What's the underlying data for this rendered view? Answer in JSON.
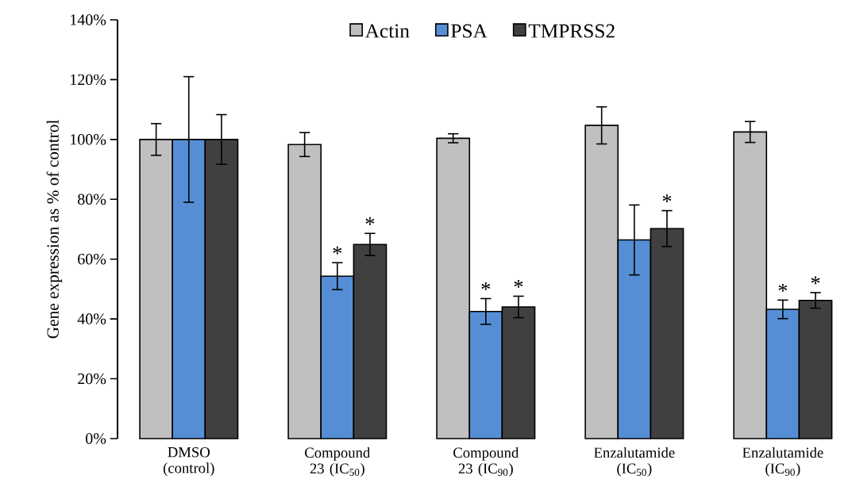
{
  "chart_data": {
    "type": "bar",
    "ylabel": "Gene expression as % of control",
    "categories": [
      "DMSO (control)",
      "Compound 23 (IC$_{50}$)",
      "Compound 23 (IC$_{90}$)",
      "Enzalutamide (IC$_{50}$)",
      "Enzalutamide (IC$_{90}$)"
    ],
    "series": [
      {
        "name": "Actin",
        "color": "#c0c0c0",
        "values": [
          100,
          98.3,
          100.4,
          104.7,
          102.5
        ],
        "errors": [
          5.3,
          4,
          1.5,
          6.2,
          3.5
        ],
        "value_labels": [
          null,
          null,
          null,
          null,
          null
        ]
      },
      {
        "name": "PSA",
        "color": "#558ed5",
        "values": [
          100,
          54.3,
          42.5,
          66.4,
          43.2
        ],
        "errors": [
          21,
          4.5,
          4.3,
          11.7,
          3.1
        ],
        "value_labels": [
          null,
          "*",
          "*",
          null,
          "*"
        ]
      },
      {
        "name": "TMPRSS2",
        "color": "#404040",
        "values": [
          100,
          64.9,
          44,
          70.2,
          46.2
        ],
        "errors": [
          8.3,
          3.7,
          3.6,
          6,
          2.6
        ],
        "value_labels": [
          null,
          "*",
          "*",
          "*",
          "*"
        ]
      }
    ],
    "ylim": [
      0,
      140
    ],
    "yticks": [
      {
        "value": 0,
        "label": "0%"
      },
      {
        "value": 20,
        "label": "20%"
      },
      {
        "value": 40,
        "label": "40%"
      },
      {
        "value": 60,
        "label": "60%"
      },
      {
        "value": 80,
        "label": "80%"
      },
      {
        "value": 100,
        "label": "100%"
      },
      {
        "value": 120,
        "label": "120%"
      },
      {
        "value": 140,
        "label": "140%"
      }
    ],
    "legend": "top",
    "grid": false
  }
}
